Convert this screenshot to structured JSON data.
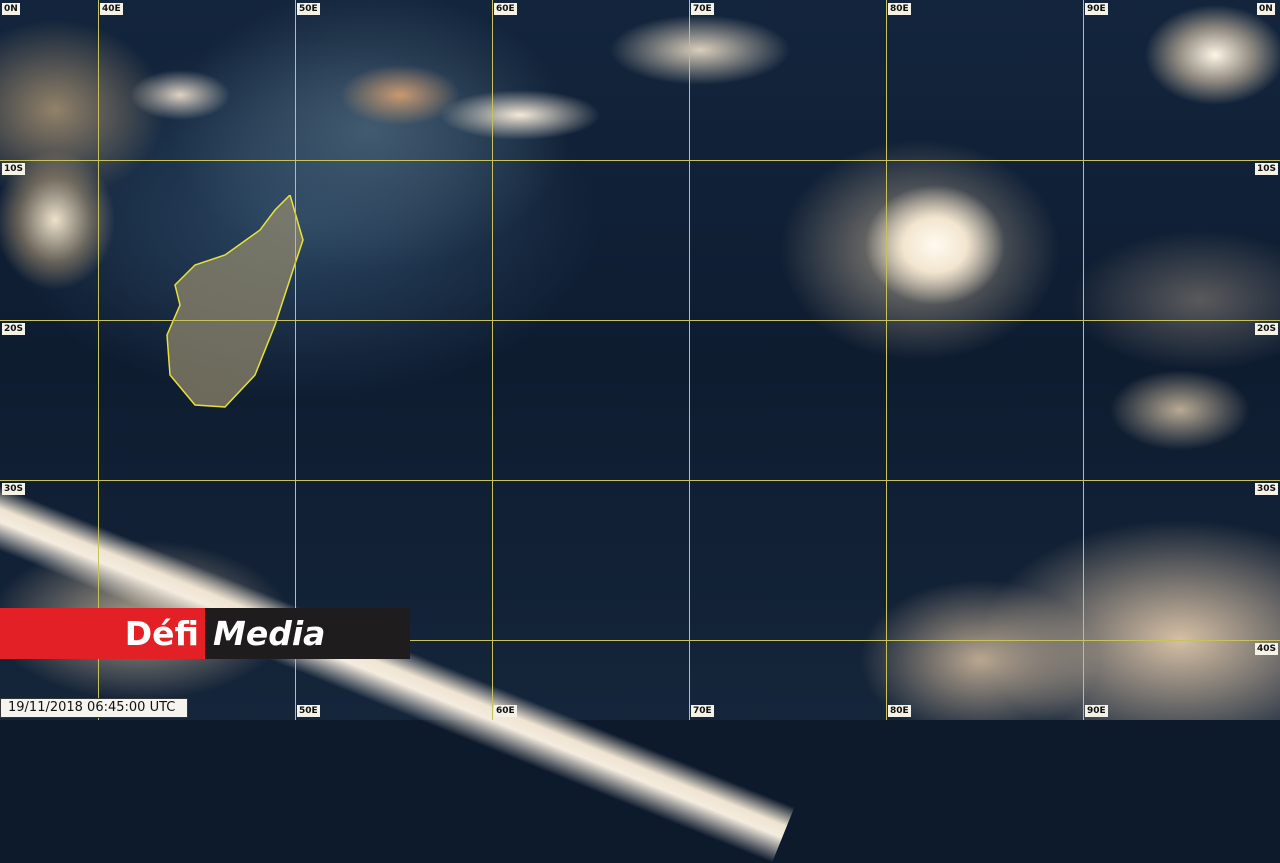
{
  "map": {
    "grid_color": "#c8c25a",
    "top_labels": [
      "0N",
      "40E",
      "50E",
      "60E",
      "70E",
      "80E",
      "90E",
      "0N"
    ],
    "left_labels": [
      "10S",
      "20S",
      "30S"
    ],
    "right_labels": [
      "10S",
      "20S",
      "30S",
      "40S"
    ],
    "bottom_labels": [
      "50E",
      "60E",
      "70E",
      "80E",
      "90E"
    ]
  },
  "logo": {
    "part1": "Défi",
    "part2": "Media",
    "red": "#e32026",
    "dark": "#1f1c1e"
  },
  "timestamp": "19/11/2018 06:45:00 UTC"
}
